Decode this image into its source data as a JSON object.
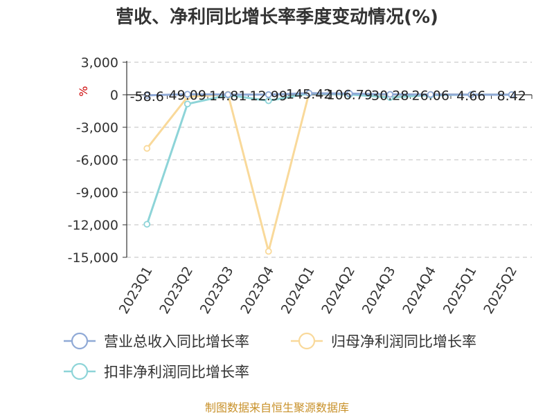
{
  "chart_data": {
    "type": "line",
    "title": "营收、净利同比增长率季度变动情况(%)",
    "unit": "%",
    "categories": [
      "2023Q1",
      "2023Q2",
      "2023Q3",
      "2023Q4",
      "2024Q1",
      "2024Q2",
      "2024Q3",
      "2024Q4",
      "2025Q1",
      "2025Q2"
    ],
    "ylim": [
      -15000,
      3000
    ],
    "yticks": [
      3000,
      0,
      -3000,
      -6000,
      -9000,
      -12000,
      -15000
    ],
    "ytick_labels": [
      "3,000",
      "0",
      "-3,000",
      "-6,000",
      "-9,000",
      "-12,000",
      "-15,000"
    ],
    "grid": true,
    "legend_position": "bottom-left",
    "series": [
      {
        "name": "营业总收入同比增长率",
        "color": "#8fa9d6",
        "values": [
          -58.6,
          49.09,
          14.81,
          12.99,
          145.42,
          106.79,
          30.28,
          26.06,
          4.66,
          8.42
        ],
        "labels": [
          "-58.6",
          "49.09",
          "14.81",
          "12.99",
          "145.42",
          "106.79",
          "30.28",
          "26.06",
          "4.66",
          "8.42"
        ]
      },
      {
        "name": "归母净利润同比增长率",
        "color": "#f9d99a",
        "values": [
          -4950,
          -200,
          50,
          -14450,
          150,
          20,
          10,
          30,
          5,
          10
        ]
      },
      {
        "name": "扣非净利润同比增长率",
        "color": "#8dd4d8",
        "values": [
          -11950,
          -850,
          -30,
          -550,
          120,
          20,
          -250,
          -30,
          5,
          10
        ]
      }
    ]
  },
  "source": "制图数据来自恒生聚源数据库"
}
